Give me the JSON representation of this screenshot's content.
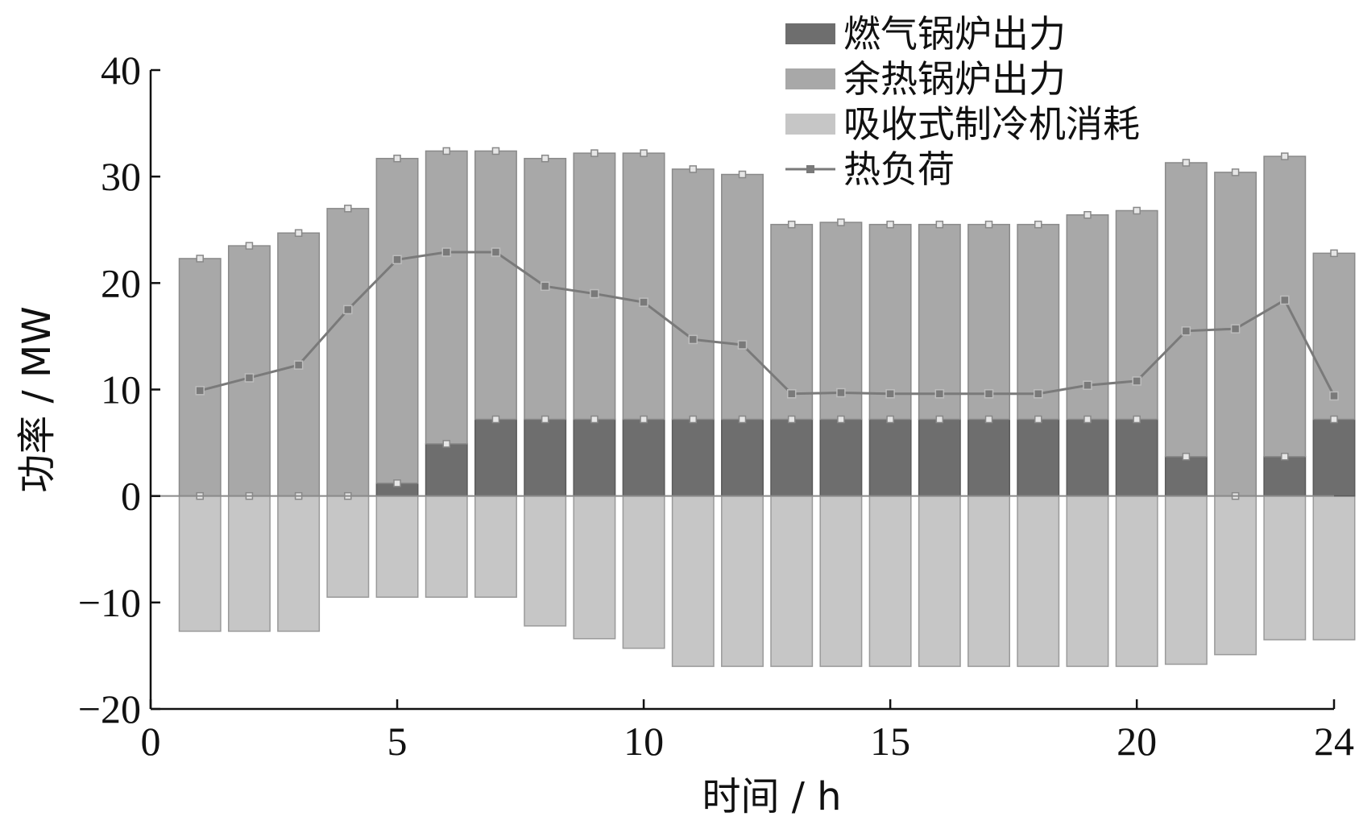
{
  "chart_data": {
    "type": "bar",
    "xlabel": "时间 / h",
    "ylabel": "功率 / MW",
    "xlim": [
      0,
      24
    ],
    "ylim": [
      -20,
      40
    ],
    "xticks": [
      "0",
      "5",
      "10",
      "15",
      "20",
      "24"
    ],
    "yticks": [
      "40",
      "30",
      "20",
      "10",
      "0",
      "−10",
      "−20"
    ],
    "hours": [
      1,
      2,
      3,
      4,
      5,
      6,
      7,
      8,
      9,
      10,
      11,
      12,
      13,
      14,
      15,
      16,
      17,
      18,
      19,
      20,
      21,
      22,
      23,
      24
    ],
    "series": [
      {
        "name": "燃气锅炉出力",
        "kind": "bar",
        "color": "#6e6e6e",
        "values": [
          0,
          0,
          0,
          0,
          1.2,
          4.9,
          7.2,
          7.2,
          7.2,
          7.2,
          7.2,
          7.2,
          7.2,
          7.2,
          7.2,
          7.2,
          7.2,
          7.2,
          7.2,
          7.2,
          3.7,
          0,
          3.7,
          7.2
        ]
      },
      {
        "name": "余热锅炉出力",
        "kind": "bar",
        "color": "#a8a8a8",
        "values": [
          22.3,
          23.5,
          24.7,
          27.0,
          30.5,
          27.5,
          25.2,
          24.5,
          25.0,
          25.0,
          23.5,
          23.0,
          18.3,
          18.5,
          18.3,
          18.3,
          18.3,
          18.3,
          19.2,
          19.6,
          27.6,
          30.4,
          28.2,
          15.6
        ]
      },
      {
        "name": "吸收式制冷机消耗",
        "kind": "bar",
        "color": "#c6c6c6",
        "values": [
          -12.7,
          -12.7,
          -12.7,
          -9.5,
          -9.5,
          -9.5,
          -9.5,
          -12.2,
          -13.4,
          -14.3,
          -16.0,
          -16.0,
          -16.0,
          -16.0,
          -16.0,
          -16.0,
          -16.0,
          -16.0,
          -16.0,
          -16.0,
          -15.8,
          -14.9,
          -13.5,
          -13.5
        ]
      },
      {
        "name": "热负荷",
        "kind": "line",
        "color": "#7a7a7a",
        "values": [
          9.9,
          11.1,
          12.3,
          17.5,
          22.2,
          22.9,
          22.9,
          19.7,
          19.0,
          18.2,
          14.7,
          14.2,
          9.6,
          9.7,
          9.6,
          9.6,
          9.6,
          9.6,
          10.4,
          10.8,
          15.5,
          15.7,
          18.4,
          9.4
        ]
      }
    ],
    "legend": "top-right",
    "grid": false
  }
}
